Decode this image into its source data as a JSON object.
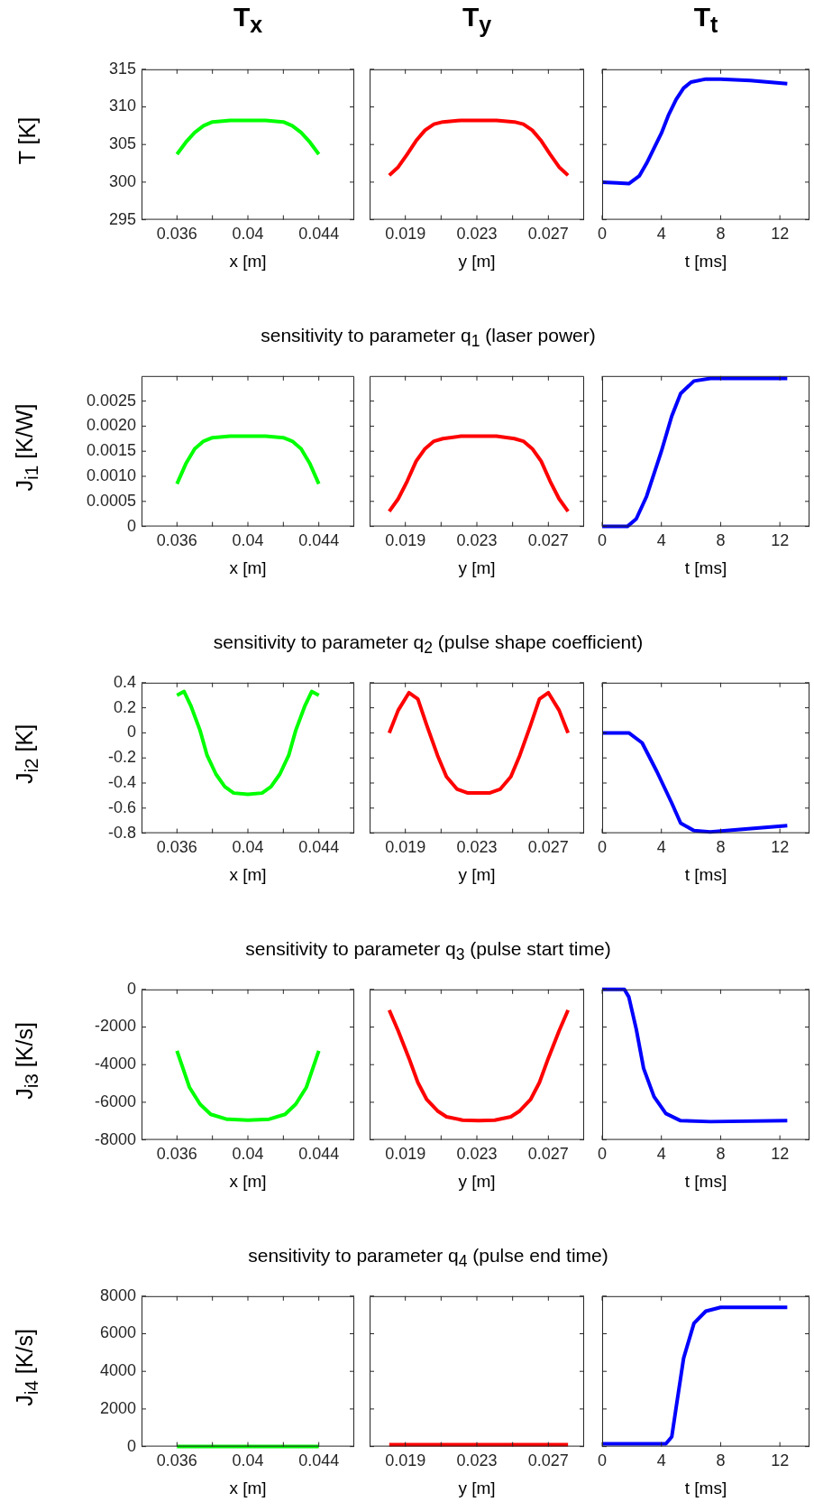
{
  "chart_data": [
    {
      "type": "line",
      "title": "T$_{x}$",
      "ylabel": "T [K]",
      "xlabel": "x [m]",
      "x": [
        0.036,
        0.0365,
        0.037,
        0.0375,
        0.038,
        0.039,
        0.04,
        0.041,
        0.042,
        0.0425,
        0.043,
        0.0435,
        0.044
      ],
      "series": [
        {
          "color": "#00ff00",
          "values": [
            303.7,
            305.3,
            306.6,
            307.5,
            308.0,
            308.2,
            308.2,
            308.2,
            308.0,
            307.5,
            306.6,
            305.3,
            303.7
          ]
        }
      ],
      "xlim": [
        0.034,
        0.046
      ],
      "xticks": [
        0.036,
        {
          "value": 0.038,
          "label": null
        },
        0.04,
        {
          "value": 0.042,
          "label": null
        },
        0.044
      ],
      "ylim": [
        295,
        315
      ],
      "yticks": [
        295,
        300,
        305,
        310,
        315
      ]
    },
    {
      "type": "line",
      "title": "T$_{y}$",
      "xlabel": "y [m]",
      "tick_labels": "x",
      "x": [
        0.0181,
        0.0186,
        0.0191,
        0.0196,
        0.0201,
        0.0206,
        0.0211,
        0.0221,
        0.0231,
        0.0241,
        0.0251,
        0.0256,
        0.0261,
        0.0266,
        0.0271,
        0.0276,
        0.0281
      ],
      "series": [
        {
          "color": "#ff0000",
          "values": [
            300.9,
            302.0,
            303.7,
            305.5,
            306.9,
            307.7,
            308.0,
            308.2,
            308.2,
            308.2,
            308.0,
            307.7,
            306.9,
            305.5,
            303.7,
            302.0,
            300.9
          ]
        }
      ],
      "xlim": [
        0.017,
        0.029
      ],
      "xticks": [
        0.019,
        {
          "value": 0.021,
          "label": null
        },
        0.023,
        {
          "value": 0.025,
          "label": null
        },
        0.027
      ],
      "ylim": [
        295,
        315
      ],
      "yticks": [
        295,
        300,
        305,
        310,
        315
      ]
    },
    {
      "type": "line",
      "title": "T$_{t}$",
      "xlabel": "t [ms]",
      "tick_labels": "x",
      "x": [
        0,
        1,
        1.8,
        2.5,
        3,
        3.5,
        4,
        4.5,
        5,
        5.5,
        6,
        7,
        8,
        10,
        12.5
      ],
      "series": [
        {
          "color": "#0000ff",
          "values": [
            300,
            299.9,
            299.8,
            300.8,
            302.5,
            304.5,
            306.5,
            309,
            311,
            312.5,
            313.3,
            313.7,
            313.7,
            313.5,
            313.1
          ]
        }
      ],
      "xlim": [
        0,
        14
      ],
      "xticks": [
        0,
        4,
        8,
        12
      ],
      "ylim": [
        295,
        315
      ],
      "yticks": [
        295,
        300,
        305,
        310,
        315
      ]
    },
    {
      "type": "line",
      "ylabel": "J$_{i1}$ [K/W]",
      "xlabel": "x [m]",
      "x": [
        0.036,
        0.0365,
        0.037,
        0.0375,
        0.038,
        0.039,
        0.04,
        0.041,
        0.042,
        0.0425,
        0.043,
        0.0435,
        0.044
      ],
      "series": [
        {
          "color": "#00ff00",
          "values": [
            0.00085,
            0.00125,
            0.00155,
            0.0017,
            0.00177,
            0.0018,
            0.0018,
            0.0018,
            0.00177,
            0.0017,
            0.00155,
            0.00125,
            0.00085
          ]
        }
      ],
      "xlim": [
        0.034,
        0.046
      ],
      "xticks": [
        0.036,
        {
          "value": 0.038,
          "label": null
        },
        0.04,
        {
          "value": 0.042,
          "label": null
        },
        0.044
      ],
      "ylim": [
        0,
        0.003
      ],
      "yticks": [
        0,
        0.0005,
        {
          "value": 0.001,
          "label": "0.0010"
        },
        0.0015,
        {
          "value": 0.002,
          "label": "0.0020"
        },
        0.0025
      ]
    },
    {
      "type": "line",
      "title": "sensitivity to parameter q$_{1}$ (laser power)",
      "xlabel": "y [m]",
      "tick_labels": "x",
      "x": [
        0.0181,
        0.0186,
        0.0191,
        0.0196,
        0.0201,
        0.0206,
        0.0211,
        0.0221,
        0.0231,
        0.0241,
        0.0251,
        0.0256,
        0.0261,
        0.0266,
        0.0271,
        0.0276,
        0.0281
      ],
      "series": [
        {
          "color": "#ff0000",
          "values": [
            0.0003,
            0.00055,
            0.0009,
            0.0013,
            0.00155,
            0.0017,
            0.00175,
            0.0018,
            0.0018,
            0.0018,
            0.00175,
            0.0017,
            0.00155,
            0.0013,
            0.0009,
            0.00055,
            0.0003
          ]
        }
      ],
      "xlim": [
        0.017,
        0.029
      ],
      "xticks": [
        0.019,
        {
          "value": 0.021,
          "label": null
        },
        0.023,
        {
          "value": 0.025,
          "label": null
        },
        0.027
      ],
      "ylim": [
        0,
        0.003
      ],
      "yticks": [
        0,
        0.0005,
        0.001,
        0.0015,
        0.002,
        0.0025
      ]
    },
    {
      "type": "line",
      "xlabel": "t [ms]",
      "tick_labels": "x",
      "x": [
        0,
        1,
        1.7,
        2.3,
        3,
        4,
        4.7,
        5.3,
        6.2,
        7.3,
        12.5
      ],
      "series": [
        {
          "color": "#0000ff",
          "values": [
            0,
            0,
            0,
            0.00015,
            0.0006,
            0.0015,
            0.0022,
            0.00265,
            0.0029,
            0.00295,
            0.00295
          ]
        }
      ],
      "xlim": [
        0,
        14
      ],
      "xticks": [
        0,
        4,
        8,
        12
      ],
      "ylim": [
        0,
        0.003
      ],
      "yticks": [
        0,
        0.0005,
        0.001,
        0.0015,
        0.002,
        0.0025
      ]
    },
    {
      "type": "line",
      "ylabel": "J$_{i2}$ [K]",
      "xlabel": "x [m]",
      "x": [
        0.036,
        0.0364,
        0.0368,
        0.0373,
        0.0377,
        0.0382,
        0.0387,
        0.0392,
        0.04,
        0.0408,
        0.0413,
        0.0418,
        0.0423,
        0.0427,
        0.0432,
        0.0436,
        0.044
      ],
      "series": [
        {
          "color": "#00ff00",
          "values": [
            0.3,
            0.33,
            0.21,
            0.02,
            -0.18,
            -0.33,
            -0.43,
            -0.48,
            -0.49,
            -0.48,
            -0.43,
            -0.33,
            -0.18,
            0.02,
            0.21,
            0.33,
            0.3
          ]
        }
      ],
      "xlim": [
        0.034,
        0.046
      ],
      "xticks": [
        0.036,
        {
          "value": 0.038,
          "label": null
        },
        0.04,
        {
          "value": 0.042,
          "label": null
        },
        0.044
      ],
      "ylim": [
        -0.8,
        0.4
      ],
      "yticks": [
        -0.8,
        -0.6,
        -0.4,
        -0.2,
        0,
        0.2,
        0.4
      ]
    },
    {
      "type": "line",
      "title": "sensitivity to parameter q$_{2}$ (pulse shape coefficient)",
      "xlabel": "y [m]",
      "tick_labels": "x",
      "x": [
        0.0181,
        0.0186,
        0.0192,
        0.0197,
        0.0202,
        0.0208,
        0.0213,
        0.0219,
        0.0225,
        0.0231,
        0.0237,
        0.0243,
        0.0249,
        0.0254,
        0.026,
        0.0265,
        0.027,
        0.0276,
        0.0281
      ],
      "series": [
        {
          "color": "#ff0000",
          "values": [
            0,
            0.18,
            0.32,
            0.27,
            0.06,
            -0.18,
            -0.35,
            -0.45,
            -0.48,
            -0.48,
            -0.48,
            -0.45,
            -0.35,
            -0.18,
            0.06,
            0.27,
            0.32,
            0.18,
            0
          ]
        }
      ],
      "xlim": [
        0.017,
        0.029
      ],
      "xticks": [
        0.019,
        {
          "value": 0.021,
          "label": null
        },
        0.023,
        {
          "value": 0.025,
          "label": null
        },
        0.027
      ],
      "ylim": [
        -0.8,
        0.4
      ],
      "yticks": [
        -0.8,
        -0.6,
        -0.4,
        -0.2,
        0,
        0.2,
        0.4
      ]
    },
    {
      "type": "line",
      "xlabel": "t [ms]",
      "tick_labels": "x",
      "x": [
        0,
        1.8,
        2.7,
        3.7,
        4.7,
        5.3,
        6.2,
        7.3,
        9.3,
        12.5
      ],
      "series": [
        {
          "color": "#0000ff",
          "values": [
            0,
            0,
            -0.08,
            -0.31,
            -0.56,
            -0.72,
            -0.78,
            -0.79,
            -0.77,
            -0.74
          ]
        }
      ],
      "xlim": [
        0,
        14
      ],
      "xticks": [
        0,
        4,
        8,
        12
      ],
      "ylim": [
        -0.8,
        0.4
      ],
      "yticks": [
        -0.8,
        -0.6,
        -0.4,
        -0.2,
        0,
        0.2,
        0.4
      ]
    },
    {
      "type": "line",
      "ylabel": "J$_{i3}$ [K/s]",
      "xlabel": "x [m]",
      "x": [
        0.036,
        0.0367,
        0.0373,
        0.0379,
        0.0388,
        0.04,
        0.0412,
        0.0421,
        0.0427,
        0.0433,
        0.044
      ],
      "series": [
        {
          "color": "#00ff00",
          "values": [
            -3260,
            -5200,
            -6100,
            -6640,
            -6900,
            -6950,
            -6900,
            -6640,
            -6100,
            -5200,
            -3260
          ]
        }
      ],
      "xlim": [
        0.034,
        0.046
      ],
      "xticks": [
        0.036,
        {
          "value": 0.038,
          "label": null
        },
        0.04,
        {
          "value": 0.042,
          "label": null
        },
        0.044
      ],
      "ylim": [
        -8000,
        0
      ],
      "yticks": [
        -8000,
        -6000,
        -4000,
        -2000,
        0
      ]
    },
    {
      "type": "line",
      "title": "sensitivity to parameter q$_{3}$ (pulse start time)",
      "xlabel": "y [m]",
      "tick_labels": "x",
      "x": [
        0.0181,
        0.0186,
        0.0192,
        0.0197,
        0.0202,
        0.0208,
        0.0213,
        0.0222,
        0.0231,
        0.024,
        0.0249,
        0.0254,
        0.026,
        0.0265,
        0.027,
        0.0276,
        0.0281
      ],
      "series": [
        {
          "color": "#ff0000",
          "values": [
            -1100,
            -2200,
            -3650,
            -4950,
            -5860,
            -6460,
            -6770,
            -6950,
            -6980,
            -6950,
            -6770,
            -6460,
            -5860,
            -4950,
            -3650,
            -2200,
            -1100
          ]
        }
      ],
      "xlim": [
        0.017,
        0.029
      ],
      "xticks": [
        0.019,
        {
          "value": 0.021,
          "label": null
        },
        0.023,
        {
          "value": 0.025,
          "label": null
        },
        0.027
      ],
      "ylim": [
        -8000,
        0
      ],
      "yticks": [
        -8000,
        -6000,
        -4000,
        -2000,
        0
      ]
    },
    {
      "type": "line",
      "xlabel": "t [ms]",
      "tick_labels": "x",
      "x": [
        0,
        1.5,
        1.8,
        2.3,
        2.8,
        3.5,
        4.3,
        5.3,
        7.3,
        12.5
      ],
      "series": [
        {
          "color": "#0000ff",
          "values": [
            0,
            0,
            -400,
            -2100,
            -4200,
            -5700,
            -6600,
            -6980,
            -7030,
            -6980
          ]
        }
      ],
      "xlim": [
        0,
        14
      ],
      "xticks": [
        0,
        4,
        8,
        12
      ],
      "ylim": [
        -8000,
        0
      ],
      "yticks": [
        -8000,
        -6000,
        -4000,
        -2000,
        0
      ]
    },
    {
      "type": "line",
      "ylabel": "J$_{i4}$ [K/s]",
      "xlabel": "x [m]",
      "x": [
        0.036,
        0.044
      ],
      "series": [
        {
          "color": "#00ff00",
          "values": [
            0,
            0
          ]
        }
      ],
      "xlim": [
        0.034,
        0.046
      ],
      "xticks": [
        0.036,
        {
          "value": 0.038,
          "label": null
        },
        0.04,
        {
          "value": 0.042,
          "label": null
        },
        0.044
      ],
      "ylim": [
        0,
        8000
      ],
      "yticks": [
        0,
        2000,
        4000,
        6000,
        8000
      ]
    },
    {
      "type": "line",
      "title": "sensitivity to parameter q$_{4}$ (pulse end time)",
      "xlabel": "y [m]",
      "tick_labels": "x",
      "x": [
        0.0181,
        0.0281
      ],
      "series": [
        {
          "color": "#ff0000",
          "values": [
            100,
            100
          ]
        }
      ],
      "xlim": [
        0.017,
        0.029
      ],
      "xticks": [
        0.019,
        {
          "value": 0.021,
          "label": null
        },
        0.023,
        {
          "value": 0.025,
          "label": null
        },
        0.027
      ],
      "ylim": [
        0,
        8000
      ],
      "yticks": [
        0,
        2000,
        4000,
        6000,
        8000
      ]
    },
    {
      "type": "line",
      "xlabel": "t [ms]",
      "tick_labels": "x",
      "x": [
        0,
        4.3,
        4.7,
        5,
        5.5,
        6.2,
        7,
        8,
        12.5
      ],
      "series": [
        {
          "color": "#0000ff",
          "values": [
            150,
            150,
            520,
            2100,
            4700,
            6560,
            7200,
            7400,
            7400
          ]
        }
      ],
      "xlim": [
        0,
        14
      ],
      "xticks": [
        0,
        4,
        8,
        12
      ],
      "ylim": [
        0,
        8000
      ],
      "yticks": [
        0,
        2000,
        4000,
        6000,
        8000
      ]
    }
  ]
}
